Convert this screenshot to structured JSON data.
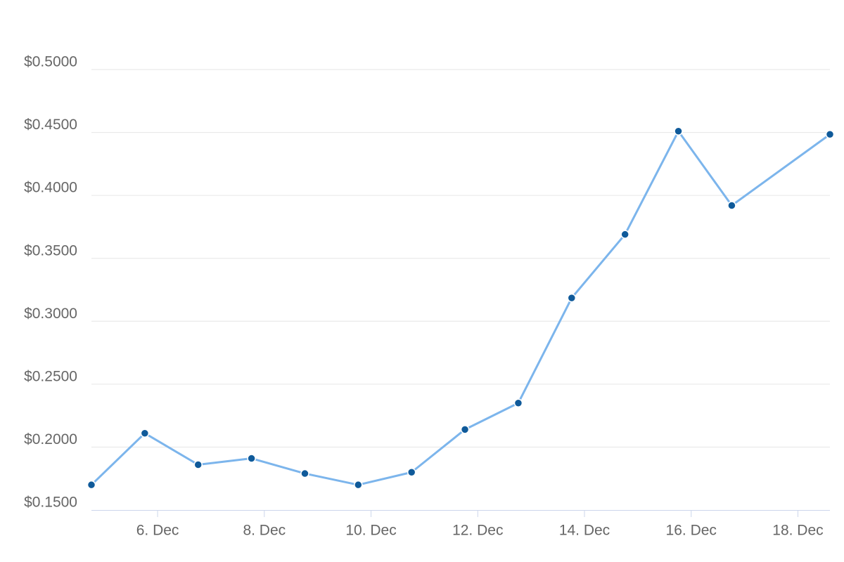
{
  "chart_data": {
    "type": "line",
    "x": [
      4.76,
      5.76,
      6.76,
      7.76,
      8.76,
      9.76,
      10.76,
      11.76,
      12.76,
      13.76,
      14.76,
      15.76,
      16.76,
      18.6
    ],
    "series": [
      {
        "line_color": "#7cb5ec",
        "color": "#0f5a9a",
        "values": [
          0.17,
          0.211,
          0.186,
          0.191,
          0.179,
          0.17,
          0.18,
          0.214,
          0.235,
          0.3185,
          0.369,
          0.451,
          0.392,
          0.4485
        ]
      }
    ],
    "xlim": [
      4.76,
      18.6
    ],
    "xticks": [
      {
        "value": 6,
        "label": "6. Dec"
      },
      {
        "value": 8,
        "label": "8. Dec"
      },
      {
        "value": 10,
        "label": "10. Dec"
      },
      {
        "value": 12,
        "label": "12. Dec"
      },
      {
        "value": 14,
        "label": "14. Dec"
      },
      {
        "value": 16,
        "label": "16. Dec"
      },
      {
        "value": 18,
        "label": "18. Dec"
      }
    ],
    "ylim": [
      0.15,
      0.5
    ],
    "yticks": [
      {
        "value": 0.15,
        "label": "$0.1500"
      },
      {
        "value": 0.2,
        "label": "$0.2000"
      },
      {
        "value": 0.25,
        "label": "$0.2500"
      },
      {
        "value": 0.3,
        "label": "$0.3000"
      },
      {
        "value": 0.35,
        "label": "$0.3500"
      },
      {
        "value": 0.4,
        "label": "$0.4000"
      },
      {
        "value": 0.45,
        "label": "$0.4500"
      },
      {
        "value": 0.5,
        "label": "$0.5000"
      }
    ],
    "grid": true
  }
}
